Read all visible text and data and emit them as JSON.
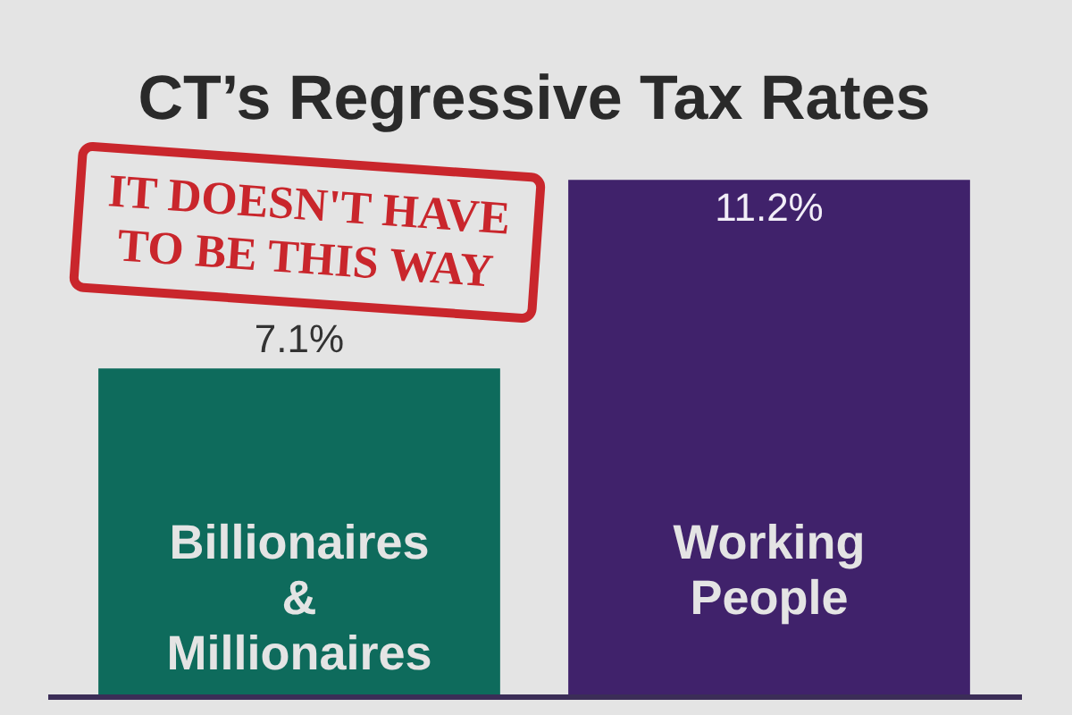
{
  "chart_data": {
    "type": "bar",
    "title": "CT’s Regressive Tax Rates",
    "categories": [
      "Billionaires & Millionaires",
      "Working People"
    ],
    "values": [
      7.1,
      11.2
    ],
    "colors": [
      "#0e6b5c",
      "#40226b"
    ],
    "value_labels": [
      "7.1%",
      "11.2%"
    ],
    "tick_labels": "x",
    "annotations": [
      "IT DOESN'T HAVE TO BE THIS WAY"
    ]
  }
}
